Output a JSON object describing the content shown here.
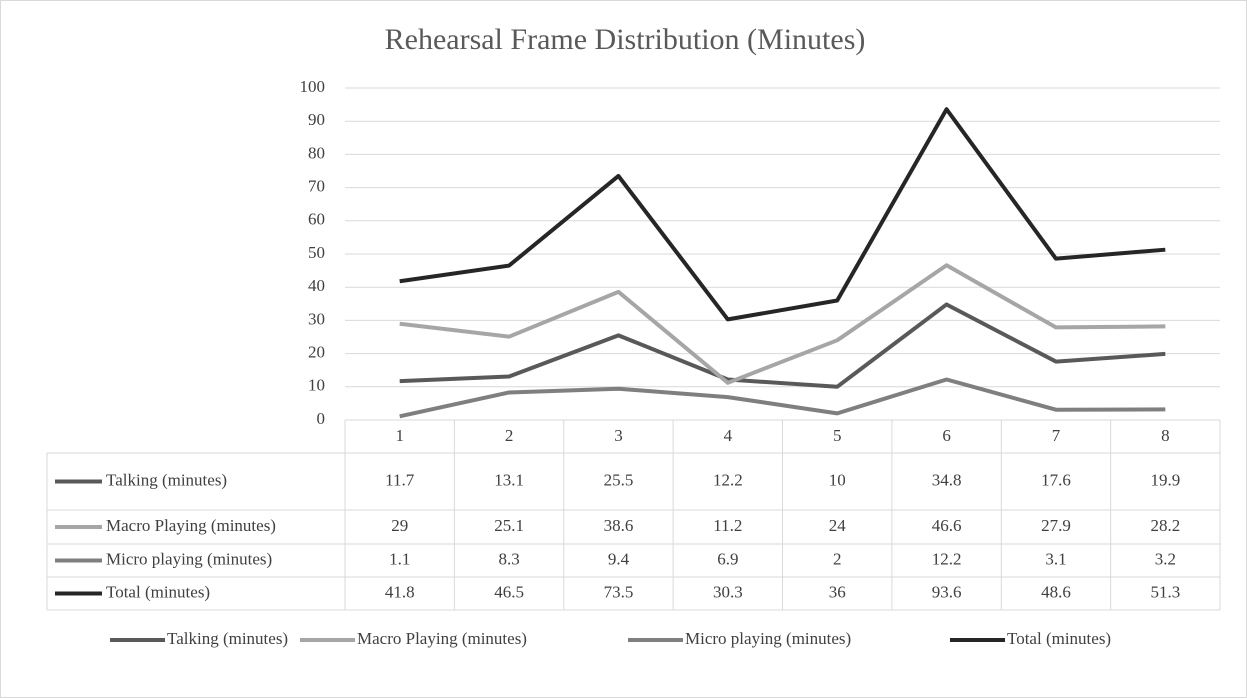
{
  "chart_data": {
    "type": "line",
    "title": "Rehearsal Frame Distribution  (Minutes)",
    "categories": [
      "1",
      "2",
      "3",
      "4",
      "5",
      "6",
      "7",
      "8"
    ],
    "series": [
      {
        "name": "Talking (minutes)",
        "color": "#595959",
        "values": [
          11.7,
          13.1,
          25.5,
          12.2,
          10,
          34.8,
          17.6,
          19.9
        ]
      },
      {
        "name": "Macro Playing (minutes)",
        "color": "#a6a6a6",
        "values": [
          29,
          25.1,
          38.6,
          11.2,
          24,
          46.6,
          27.9,
          28.2
        ]
      },
      {
        "name": "Micro playing (minutes)",
        "color": "#7f7f7f",
        "values": [
          1.1,
          8.3,
          9.4,
          6.9,
          2,
          12.2,
          3.1,
          3.2
        ]
      },
      {
        "name": "Total (minutes)",
        "color": "#262626",
        "values": [
          41.8,
          46.5,
          73.5,
          30.3,
          36,
          93.6,
          48.6,
          51.3
        ]
      }
    ],
    "ylim": [
      0,
      100
    ],
    "yticks": [
      0,
      10,
      20,
      30,
      40,
      50,
      60,
      70,
      80,
      90,
      100
    ],
    "grid": true,
    "legend": "bottom",
    "data_table": true
  }
}
